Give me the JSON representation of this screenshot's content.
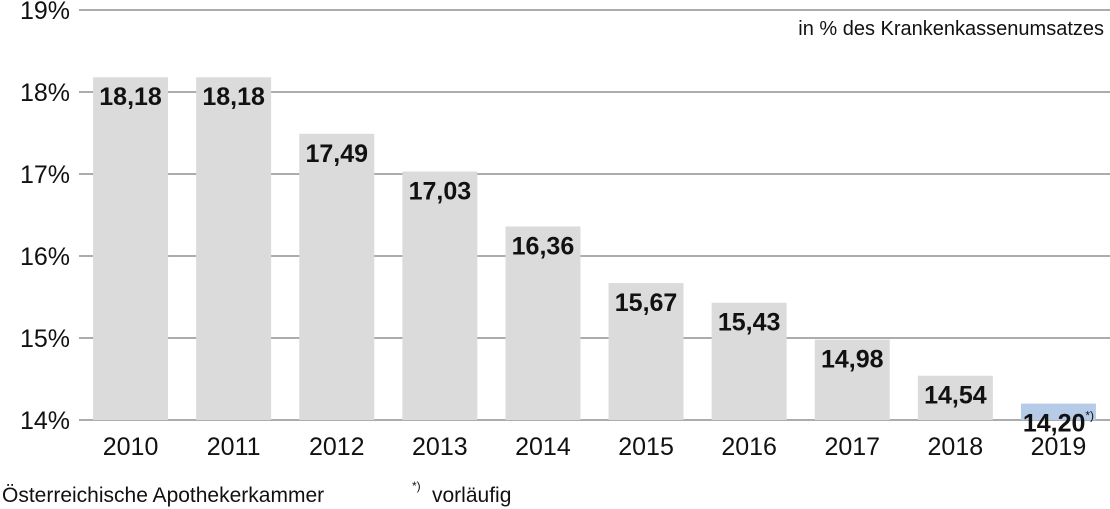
{
  "chart_data": {
    "type": "bar",
    "categories": [
      "2010",
      "2011",
      "2012",
      "2013",
      "2014",
      "2015",
      "2016",
      "2017",
      "2018",
      "2019"
    ],
    "values": [
      18.18,
      18.18,
      17.49,
      17.03,
      16.36,
      15.67,
      15.43,
      14.98,
      14.54,
      14.2
    ],
    "value_labels": [
      "18,18",
      "18,18",
      "17,49",
      "17,03",
      "16,36",
      "15,67",
      "15,43",
      "14,98",
      "14,54",
      "14,20"
    ],
    "value_label_marks": [
      "",
      "",
      "",
      "",
      "",
      "",
      "",
      "",
      "",
      "*)"
    ],
    "ylim": [
      14,
      19
    ],
    "yticks": [
      14,
      15,
      16,
      17,
      18,
      19
    ],
    "ytick_labels": [
      "14%",
      "15%",
      "16%",
      "17%",
      "18%",
      "19%"
    ],
    "unit_note": "in % des Krankenkassenumsatzes",
    "grid": true,
    "colors": {
      "bar": "#dcdbdb",
      "highlight_bar": "#b5cbe8",
      "grid": "#7a7a7a",
      "highlight_index": 9
    }
  },
  "footer": {
    "source": "Österreichische Apothekerkammer",
    "footnote_mark": "*)",
    "footnote_text": "vorläufig"
  }
}
